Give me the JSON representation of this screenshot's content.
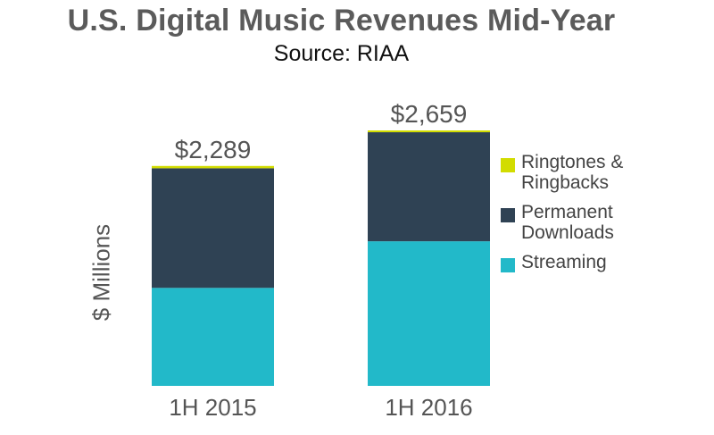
{
  "title": "U.S. Digital Music Revenues Mid-Year",
  "subtitle": "Source: RIAA",
  "colors": {
    "ringtones": "#d2dc00",
    "downloads": "#2f4254",
    "streaming": "#22b9c9"
  },
  "chart_data": {
    "type": "bar",
    "stacked": true,
    "title": "U.S. Digital Music Revenues Mid-Year",
    "subtitle": "Source: RIAA",
    "xlabel": "",
    "ylabel": "$ Millions",
    "categories": [
      "1H 2015",
      "1H 2016"
    ],
    "series": [
      {
        "name": "Streaming",
        "values": [
          1020,
          1505
        ]
      },
      {
        "name": "Permanent Downloads",
        "values": [
          1245,
          1135
        ]
      },
      {
        "name": "Ringtones & Ringbacks",
        "values": [
          24,
          19
        ]
      }
    ],
    "totals": [
      2289,
      2659
    ],
    "total_labels": [
      "$2,289",
      "$2,659"
    ],
    "ylim": [
      0,
      2659
    ],
    "grid": false,
    "legend": {
      "position": "right",
      "items": [
        {
          "key": "ringtones",
          "label": "Ringtones &\nRingbacks"
        },
        {
          "key": "downloads",
          "label": "Permanent\nDownloads"
        },
        {
          "key": "streaming",
          "label": "Streaming"
        }
      ]
    }
  }
}
